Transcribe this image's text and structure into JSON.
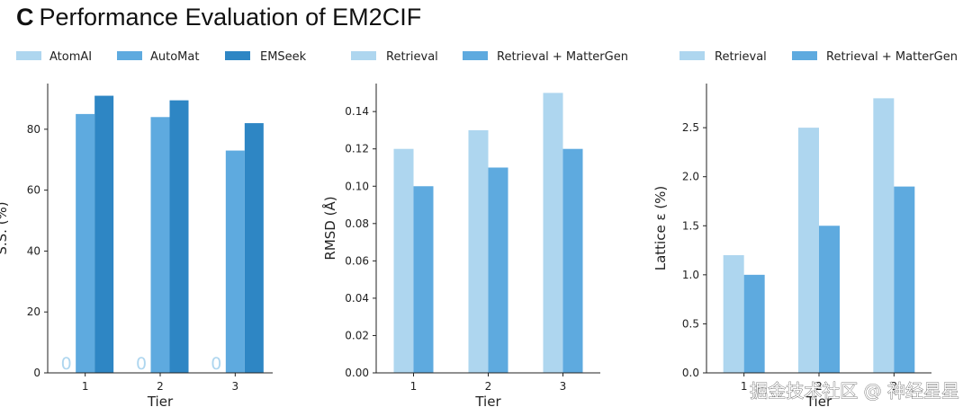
{
  "figure": {
    "panel_letter": "C",
    "title": "Performance Evaluation of EM2CIF"
  },
  "watermark": "掘金技术社区 @ 神经星星",
  "colors": {
    "light": "#aed6ef",
    "mid": "#5eaadf",
    "dark": "#2e86c4"
  },
  "chart_data": [
    {
      "type": "bar",
      "categories": [
        "1",
        "2",
        "3"
      ],
      "series": [
        {
          "name": "AtomAI",
          "values": [
            0,
            0,
            0
          ],
          "color": "#aed6ef"
        },
        {
          "name": "AutoMat",
          "values": [
            85,
            84,
            73
          ],
          "color": "#5eaadf"
        },
        {
          "name": "EMSeek",
          "values": [
            91,
            89.5,
            82
          ],
          "color": "#2e86c4"
        }
      ],
      "bar_value_labels": [
        "0",
        "0",
        "0"
      ],
      "xlabel": "Tier",
      "ylabel": "S.S. (%)",
      "ylim": [
        0,
        95
      ],
      "yticks": [
        0,
        20,
        40,
        60,
        80
      ],
      "ytick_labels": [
        "0",
        "20",
        "40",
        "60",
        "80"
      ],
      "grid": false,
      "legend": "top"
    },
    {
      "type": "bar",
      "categories": [
        "1",
        "2",
        "3"
      ],
      "series": [
        {
          "name": "Retrieval",
          "values": [
            0.12,
            0.13,
            0.15
          ],
          "color": "#aed6ef"
        },
        {
          "name": "Retrieval + MatterGen",
          "values": [
            0.1,
            0.11,
            0.12
          ],
          "color": "#5eaadf"
        }
      ],
      "xlabel": "Tier",
      "ylabel": "RMSD (Å)",
      "ylim": [
        0,
        0.155
      ],
      "yticks": [
        0,
        0.02,
        0.04,
        0.06,
        0.08,
        0.1,
        0.12,
        0.14
      ],
      "ytick_labels": [
        "0.00",
        "0.02",
        "0.04",
        "0.06",
        "0.08",
        "0.10",
        "0.12",
        "0.14"
      ],
      "grid": false,
      "legend": "top"
    },
    {
      "type": "bar",
      "categories": [
        "1",
        "2",
        "3"
      ],
      "series": [
        {
          "name": "Retrieval",
          "values": [
            1.2,
            2.5,
            2.8
          ],
          "color": "#aed6ef"
        },
        {
          "name": "Retrieval + MatterGen",
          "values": [
            1.0,
            1.5,
            1.9
          ],
          "color": "#5eaadf"
        }
      ],
      "xlabel": "Tier",
      "ylabel": "Lattice ε (%)",
      "ylim": [
        0,
        2.95
      ],
      "yticks": [
        0,
        0.5,
        1,
        1.5,
        2,
        2.5
      ],
      "ytick_labels": [
        "0.0",
        "0.5",
        "1.0",
        "1.5",
        "2.0",
        "2.5"
      ],
      "grid": false,
      "legend": "top"
    }
  ]
}
